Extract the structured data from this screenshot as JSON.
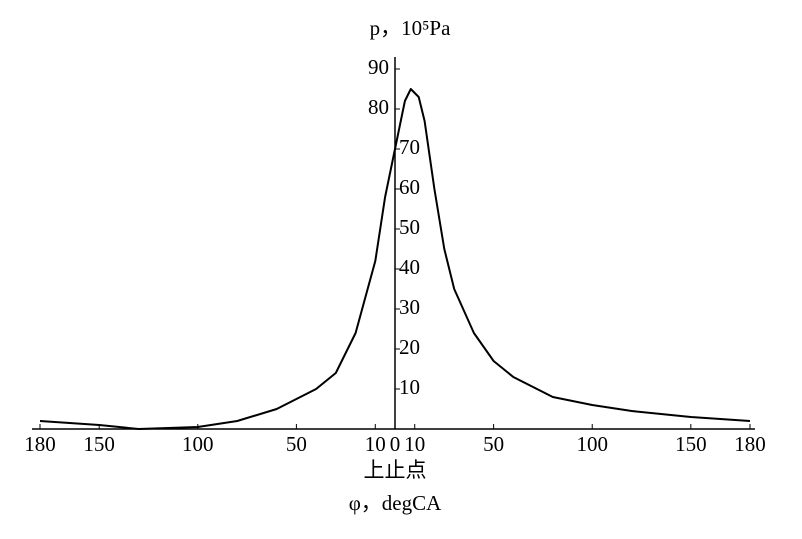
{
  "chart_data": {
    "type": "line",
    "title": "p，10⁵Pa",
    "xlabel_top": "上止点",
    "xlabel": "φ，degCA",
    "x": [
      -180,
      -150,
      -130,
      -100,
      -80,
      -60,
      -40,
      -30,
      -20,
      -10,
      -5,
      0,
      5,
      8,
      12,
      15,
      20,
      25,
      30,
      40,
      50,
      60,
      80,
      100,
      120,
      150,
      180
    ],
    "values": [
      2,
      1,
      0,
      0.5,
      2,
      5,
      10,
      14,
      24,
      42,
      58,
      70,
      82,
      85,
      83,
      77,
      60,
      45,
      35,
      24,
      17,
      13,
      8,
      6,
      4.5,
      3,
      2
    ],
    "color": "#000000",
    "xlim": [
      -180,
      180
    ],
    "ylim": [
      0,
      93
    ],
    "xticks": [
      {
        "value": -180,
        "label": "180"
      },
      {
        "value": -150,
        "label": "150"
      },
      {
        "value": -100,
        "label": "100"
      },
      {
        "value": -50,
        "label": "50"
      },
      {
        "value": -10,
        "label": "10"
      },
      0,
      10,
      50,
      100,
      150,
      180
    ],
    "yticks": [
      10,
      20,
      30,
      40,
      50,
      60,
      70,
      80,
      90
    ]
  }
}
